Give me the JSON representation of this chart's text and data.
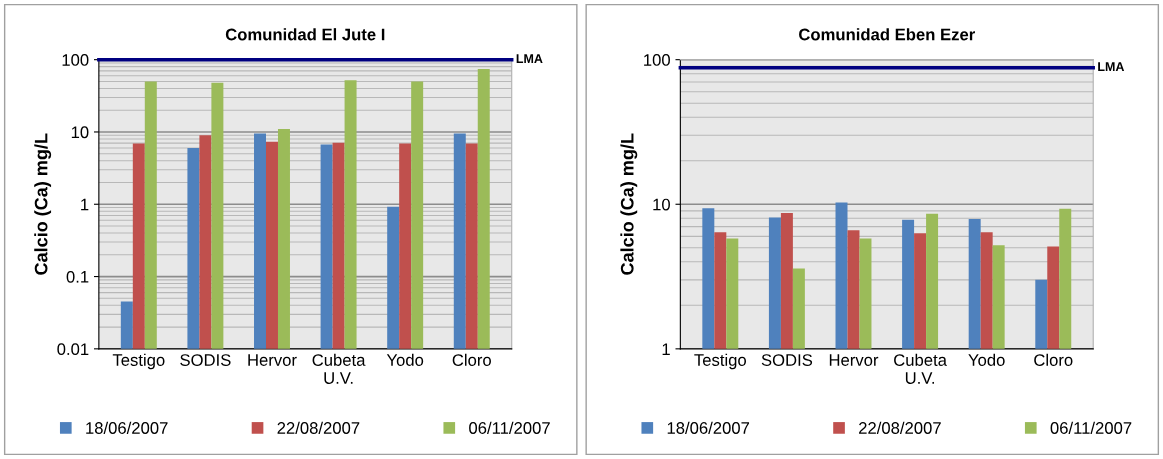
{
  "chart_data": [
    {
      "type": "bar",
      "title": "Comunidad El Jute I",
      "ylabel": "Calcio (Ca) mg/L",
      "log": true,
      "ylim": [
        0.01,
        100
      ],
      "yticks": [
        0.01,
        0.1,
        1,
        10,
        100
      ],
      "grid": true,
      "legend": "bottom",
      "categories": [
        "Testigo",
        "SODIS",
        "Hervor",
        "Cubeta\nU.V.",
        "Yodo",
        "Cloro"
      ],
      "series": [
        {
          "name": "18/06/2007",
          "color": "#4f81bd",
          "values": [
            0.045,
            6.0,
            9.5,
            6.7,
            0.92,
            9.5
          ]
        },
        {
          "name": "22/08/2007",
          "color": "#c0504d",
          "values": [
            6.9,
            9.0,
            7.3,
            7.1,
            6.9,
            6.9
          ]
        },
        {
          "name": "06/11/2007",
          "color": "#9bbb59",
          "values": [
            50,
            48,
            11,
            52,
            50,
            74
          ]
        }
      ],
      "ref_lines": [
        {
          "axis": "y",
          "value": 100,
          "label": "LMA",
          "color": "#000080"
        }
      ]
    },
    {
      "type": "bar",
      "title": "Comunidad Eben Ezer",
      "ylabel": "Calcio (Ca) mg/L",
      "log": true,
      "ylim": [
        1,
        100
      ],
      "yticks": [
        1,
        10,
        100
      ],
      "grid": true,
      "legend": "bottom",
      "categories": [
        "Testigo",
        "SODIS",
        "Hervor",
        "Cubeta\nU.V.",
        "Yodo",
        "Cloro"
      ],
      "series": [
        {
          "name": "18/06/2007",
          "color": "#4f81bd",
          "values": [
            9.4,
            8.1,
            10.3,
            7.8,
            7.9,
            3.0
          ]
        },
        {
          "name": "22/08/2007",
          "color": "#c0504d",
          "values": [
            6.4,
            8.7,
            6.6,
            6.3,
            6.4,
            5.1
          ]
        },
        {
          "name": "06/11/2007",
          "color": "#9bbb59",
          "values": [
            5.8,
            3.6,
            5.8,
            8.6,
            5.2,
            9.3
          ]
        }
      ],
      "ref_lines": [
        {
          "axis": "y",
          "value": 88,
          "label": "LMA",
          "color": "#000080"
        }
      ]
    }
  ]
}
